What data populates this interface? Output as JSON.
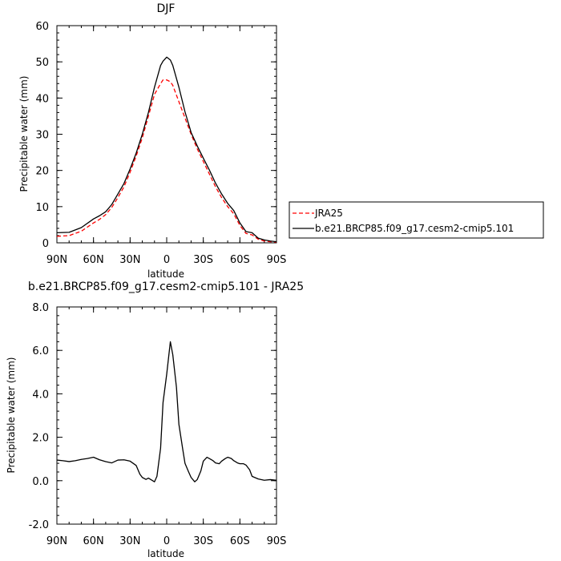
{
  "chart_data": [
    {
      "type": "line",
      "title": "DJF",
      "xlabel": "latitude",
      "ylabel": "Precipitable water (mm)",
      "xlim": [
        90,
        -90
      ],
      "ylim": [
        0,
        60
      ],
      "x_ticks": [
        {
          "value": 90,
          "label": "90N"
        },
        {
          "value": 60,
          "label": "60N"
        },
        {
          "value": 30,
          "label": "30N"
        },
        {
          "value": 0,
          "label": "0"
        },
        {
          "value": -30,
          "label": "30S"
        },
        {
          "value": -60,
          "label": "60S"
        },
        {
          "value": -90,
          "label": "90S"
        }
      ],
      "y_ticks": [
        {
          "value": 0,
          "label": "0"
        },
        {
          "value": 10,
          "label": "10"
        },
        {
          "value": 20,
          "label": "20"
        },
        {
          "value": 30,
          "label": "30"
        },
        {
          "value": 40,
          "label": "40"
        },
        {
          "value": 50,
          "label": "50"
        },
        {
          "value": 60,
          "label": "60"
        }
      ],
      "legend_position": "right",
      "series": [
        {
          "name": "JRA25",
          "color": "#ff0000",
          "dash": true,
          "x": [
            90,
            80,
            70,
            60,
            55,
            50,
            45,
            40,
            35,
            30,
            25,
            20,
            15,
            10,
            5,
            3,
            0,
            -3,
            -5,
            -10,
            -15,
            -20,
            -25,
            -30,
            -35,
            -40,
            -45,
            -50,
            -55,
            -60,
            -65,
            -70,
            -75,
            -80,
            -85,
            -90
          ],
          "y": [
            1.8,
            2.0,
            3.2,
            5.5,
            6.5,
            7.8,
            9.8,
            12.5,
            15.5,
            19.5,
            24.0,
            29.0,
            35.0,
            41.0,
            44.0,
            45.0,
            45.0,
            44.5,
            43.5,
            39.0,
            34.5,
            30.0,
            26.0,
            22.5,
            19.0,
            15.5,
            12.5,
            10.0,
            8.0,
            4.8,
            2.6,
            2.2,
            1.0,
            0.5,
            0.3,
            0.2
          ]
        },
        {
          "name": "b.e21.BRCP85.f09_g17.cesm2-cmip5.101",
          "color": "#000000",
          "dash": false,
          "x": [
            90,
            80,
            70,
            60,
            55,
            50,
            45,
            40,
            35,
            30,
            25,
            20,
            15,
            10,
            5,
            3,
            0,
            -3,
            -5,
            -10,
            -15,
            -20,
            -25,
            -30,
            -35,
            -40,
            -45,
            -50,
            -55,
            -60,
            -65,
            -70,
            -75,
            -80,
            -85,
            -90
          ],
          "y": [
            2.8,
            2.9,
            4.2,
            6.6,
            7.5,
            8.6,
            10.6,
            13.5,
            16.4,
            20.4,
            24.8,
            30.0,
            36.0,
            43.0,
            49.0,
            50.2,
            51.3,
            50.5,
            49.0,
            43.0,
            36.2,
            30.5,
            26.8,
            23.4,
            20.1,
            16.5,
            13.5,
            10.9,
            8.9,
            5.5,
            3.1,
            2.8,
            1.3,
            0.8,
            0.5,
            0.3
          ]
        }
      ]
    },
    {
      "type": "line",
      "title": "b.e21.BRCP85.f09_g17.cesm2-cmip5.101 - JRA25",
      "xlabel": "latitude",
      "ylabel": "Precipitable water (mm)",
      "xlim": [
        90,
        -90
      ],
      "ylim": [
        -2.0,
        8.0
      ],
      "x_ticks": [
        {
          "value": 90,
          "label": "90N"
        },
        {
          "value": 60,
          "label": "60N"
        },
        {
          "value": 30,
          "label": "30N"
        },
        {
          "value": 0,
          "label": "0"
        },
        {
          "value": -30,
          "label": "30S"
        },
        {
          "value": -60,
          "label": "60S"
        },
        {
          "value": -90,
          "label": "90S"
        }
      ],
      "y_ticks": [
        {
          "value": -2.0,
          "label": "-2.0"
        },
        {
          "value": 0.0,
          "label": "0.0"
        },
        {
          "value": 2.0,
          "label": "2.0"
        },
        {
          "value": 4.0,
          "label": "4.0"
        },
        {
          "value": 6.0,
          "label": "6.0"
        },
        {
          "value": 8.0,
          "label": "8.0"
        }
      ],
      "series": [
        {
          "name": "",
          "color": "#000000",
          "dash": false,
          "x": [
            90,
            85,
            80,
            75,
            70,
            65,
            60,
            55,
            50,
            45,
            40,
            35,
            30,
            25,
            22,
            20,
            17,
            15,
            12,
            10,
            8,
            5,
            3,
            0,
            -3,
            -5,
            -8,
            -10,
            -13,
            -15,
            -18,
            -20,
            -23,
            -25,
            -28,
            -30,
            -33,
            -35,
            -38,
            -40,
            -43,
            -45,
            -48,
            -50,
            -53,
            -55,
            -58,
            -60,
            -63,
            -65,
            -68,
            -70,
            -75,
            -80,
            -85,
            -90
          ],
          "y": [
            0.95,
            0.92,
            0.88,
            0.92,
            0.98,
            1.02,
            1.08,
            0.96,
            0.88,
            0.82,
            0.95,
            0.96,
            0.9,
            0.7,
            0.3,
            0.15,
            0.06,
            0.12,
            0.02,
            -0.05,
            0.2,
            1.5,
            3.6,
            4.9,
            6.4,
            5.8,
            4.3,
            2.6,
            1.5,
            0.8,
            0.4,
            0.15,
            -0.05,
            0.05,
            0.45,
            0.9,
            1.08,
            1.02,
            0.92,
            0.82,
            0.78,
            0.9,
            1.02,
            1.08,
            1.02,
            0.92,
            0.82,
            0.78,
            0.78,
            0.72,
            0.5,
            0.2,
            0.08,
            0.02,
            0.05,
            0.02
          ]
        }
      ]
    }
  ]
}
